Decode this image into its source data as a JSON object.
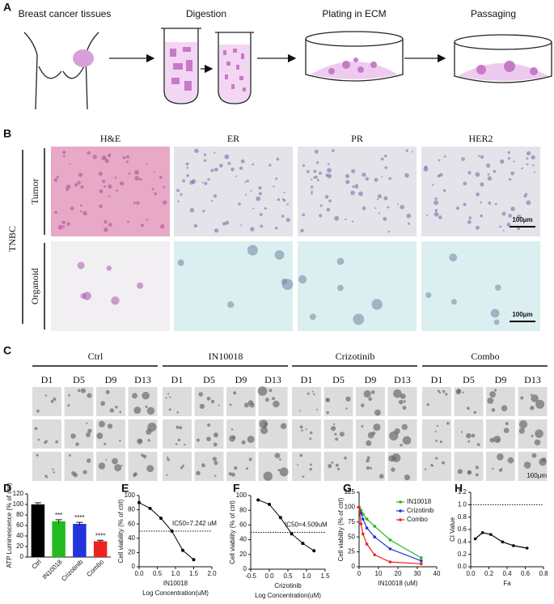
{
  "panel_labels": [
    "A",
    "B",
    "C",
    "D",
    "E",
    "F",
    "G",
    "H"
  ],
  "panel_a": {
    "steps": [
      "Breast cancer tissues",
      "Digestion",
      "Plating in ECM",
      "Passaging"
    ]
  },
  "panel_b": {
    "group": "TNBC",
    "rows": [
      "Tumor",
      "Organoid"
    ],
    "columns": [
      "H&E",
      "ER",
      "PR",
      "HER2"
    ],
    "scale_bar": "100μm"
  },
  "panel_c": {
    "groups": [
      "Ctrl",
      "IN10018",
      "Crizotinib",
      "Combo"
    ],
    "days": [
      "D1",
      "D5",
      "D9",
      "D13"
    ],
    "scale_bar": "100μm"
  },
  "chart_data": [
    {
      "type": "bar",
      "ylabel": "ATP Luminescence (% of ctrl)",
      "categories": [
        "Ctrl",
        "IN10018",
        "Crizotinib",
        "Combo"
      ],
      "values": [
        100,
        68,
        63,
        30
      ],
      "errors": [
        3,
        3,
        3,
        2
      ],
      "colors": [
        "#000000",
        "#22bb22",
        "#2233dd",
        "#ee2222"
      ],
      "significance": [
        null,
        "***",
        "****",
        "****"
      ],
      "ylim": [
        0,
        120
      ],
      "yticks": [
        0,
        20,
        40,
        60,
        80,
        100,
        120
      ]
    },
    {
      "type": "dose_response",
      "ylabel": "Cell viability (% of ctrl)",
      "subtitle": "IN10018",
      "xlabel": "Log Concentration(uM)",
      "annotation": "IC50=7.242 uM",
      "reference_line": 50,
      "color": "#000000",
      "x": [
        0,
        0.3,
        0.6,
        0.9,
        1.2,
        1.5
      ],
      "values": [
        90,
        82,
        68,
        50,
        23,
        10
      ],
      "xlim": [
        0,
        2
      ],
      "xticks": [
        {
          "value": 0,
          "label": "0.0"
        },
        0.5,
        {
          "value": 1,
          "label": "1.0"
        },
        1.5,
        {
          "value": 2,
          "label": "2.0"
        }
      ],
      "ylim": [
        0,
        100
      ],
      "yticks": [
        0,
        20,
        40,
        60,
        80,
        100
      ]
    },
    {
      "type": "dose_response",
      "ylabel": "Cell viability (% of ctrl)",
      "subtitle": "Crizotinib",
      "xlabel": "Log Concentration(uM)",
      "annotation": "IC50=4.509uM",
      "reference_line": 50,
      "color": "#000000",
      "x": [
        -0.3,
        0,
        0.3,
        0.6,
        0.9,
        1.2
      ],
      "values": [
        94,
        88,
        70,
        48,
        35,
        25
      ],
      "xlim": [
        -0.5,
        1.5
      ],
      "xticks": [
        -0.5,
        {
          "value": 0,
          "label": "0.0"
        },
        0.5,
        {
          "value": 1,
          "label": "1.0"
        },
        1.5
      ],
      "ylim": [
        0,
        100
      ],
      "yticks": [
        0,
        20,
        40,
        60,
        80,
        100
      ]
    },
    {
      "type": "line",
      "ylabel": "Cell viability (% of ctrl)",
      "xlabel": "IN10018 (uM)",
      "x": [
        0,
        1,
        2,
        4,
        8,
        16,
        32
      ],
      "series": [
        {
          "name": "IN10018",
          "color": "#22bb22",
          "values": [
            100,
            95,
            88,
            80,
            68,
            45,
            15
          ]
        },
        {
          "name": "Crizotinib",
          "color": "#2233dd",
          "values": [
            100,
            90,
            80,
            65,
            50,
            30,
            10
          ]
        },
        {
          "name": "Combo",
          "color": "#ee2222",
          "values": [
            100,
            72,
            55,
            38,
            20,
            8,
            5
          ]
        }
      ],
      "xlim": [
        0,
        40
      ],
      "xticks": [
        0,
        10,
        20,
        30,
        40
      ],
      "ylim": [
        0,
        125
      ],
      "yticks": [
        0,
        25,
        50,
        75,
        100,
        125
      ],
      "legend": "upper-right"
    },
    {
      "type": "line",
      "ylabel": "CI Value",
      "xlabel": "Fa",
      "reference_line": 1,
      "x": [
        0.05,
        0.13,
        0.22,
        0.35,
        0.47,
        0.62
      ],
      "series": [
        {
          "color": "#000000",
          "values": [
            0.45,
            0.55,
            0.52,
            0.4,
            0.34,
            0.3
          ]
        }
      ],
      "xlim": [
        0,
        0.8
      ],
      "xticks": [
        {
          "value": 0,
          "label": "0.0"
        },
        0.2,
        0.4,
        0.6,
        0.8
      ],
      "ylim": [
        0,
        1.2
      ],
      "yticks": [
        {
          "value": 0,
          "label": "0.0"
        },
        0.2,
        0.4,
        0.6,
        0.8,
        {
          "value": 1,
          "label": "1.0"
        },
        1.2
      ]
    }
  ]
}
